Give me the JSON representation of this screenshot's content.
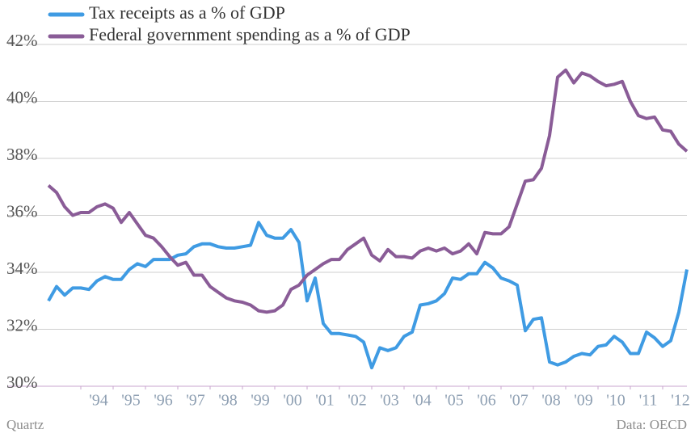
{
  "chart_data": {
    "type": "line",
    "source": "Quartz",
    "note": "Data: OECD",
    "legend": "top-left",
    "grid": true,
    "x": [
      1993,
      1993.25,
      1993.5,
      1993.75,
      1994,
      1994.25,
      1994.5,
      1994.75,
      1995,
      1995.25,
      1995.5,
      1995.75,
      1996,
      1996.25,
      1996.5,
      1996.75,
      1997,
      1997.25,
      1997.5,
      1997.75,
      1998,
      1998.25,
      1998.5,
      1998.75,
      1999,
      1999.25,
      1999.5,
      1999.75,
      2000,
      2000.25,
      2000.5,
      2000.75,
      2001,
      2001.25,
      2001.5,
      2001.75,
      2002,
      2002.25,
      2002.5,
      2002.75,
      2003,
      2003.25,
      2003.5,
      2003.75,
      2004,
      2004.25,
      2004.5,
      2004.75,
      2005,
      2005.25,
      2005.5,
      2005.75,
      2006,
      2006.25,
      2006.5,
      2006.75,
      2007,
      2007.25,
      2007.5,
      2007.75,
      2008,
      2008.25,
      2008.5,
      2008.75,
      2009,
      2009.25,
      2009.5,
      2009.75,
      2010,
      2010.25,
      2010.5,
      2010.75,
      2011,
      2011.25,
      2011.5,
      2011.75,
      2012,
      2012.25,
      2012.5,
      2012.75
    ],
    "series": [
      {
        "name": "Tax receipts as a % of GDP",
        "color": "#3f9be3",
        "values": [
          33.0,
          33.5,
          33.2,
          33.45,
          33.45,
          33.4,
          33.7,
          33.85,
          33.75,
          33.75,
          34.1,
          34.3,
          34.2,
          34.45,
          34.45,
          34.45,
          34.6,
          34.65,
          34.9,
          35.0,
          35.0,
          34.9,
          34.85,
          34.85,
          34.9,
          34.95,
          35.75,
          35.3,
          35.2,
          35.2,
          35.5,
          35.05,
          33.0,
          33.8,
          32.2,
          31.85,
          31.85,
          31.8,
          31.75,
          31.55,
          30.65,
          31.35,
          31.25,
          31.35,
          31.75,
          31.9,
          32.85,
          32.9,
          33.0,
          33.25,
          33.8,
          33.75,
          33.95,
          33.95,
          34.35,
          34.15,
          33.8,
          33.7,
          33.55,
          31.95,
          32.35,
          32.4,
          30.85,
          30.75,
          30.85,
          31.05,
          31.15,
          31.1,
          31.4,
          31.45,
          31.75,
          31.55,
          31.15,
          31.15,
          31.9,
          31.7,
          31.4,
          31.6,
          32.6,
          34.1
        ]
      },
      {
        "name": "Federal government spending as a % of GDP",
        "color": "#8a5c97",
        "values": [
          37.05,
          36.8,
          36.3,
          36.0,
          36.1,
          36.1,
          36.3,
          36.4,
          36.25,
          35.75,
          36.1,
          35.7,
          35.3,
          35.2,
          34.9,
          34.55,
          34.25,
          34.35,
          33.9,
          33.9,
          33.5,
          33.3,
          33.1,
          33.0,
          32.95,
          32.85,
          32.65,
          32.6,
          32.65,
          32.85,
          33.4,
          33.55,
          33.9,
          34.1,
          34.3,
          34.45,
          34.45,
          34.8,
          35.0,
          35.2,
          34.6,
          34.4,
          34.8,
          34.55,
          34.55,
          34.5,
          34.75,
          34.85,
          34.75,
          34.85,
          34.65,
          34.75,
          35.0,
          34.65,
          35.4,
          35.35,
          35.35,
          35.6,
          36.4,
          37.2,
          37.25,
          37.65,
          38.8,
          40.85,
          41.1,
          40.65,
          41.0,
          40.9,
          40.7,
          40.55,
          40.6,
          40.7,
          40.0,
          39.5,
          39.4,
          39.45,
          39.0,
          38.95,
          38.5,
          38.25
        ]
      }
    ],
    "xlim": [
      1991.75,
      2012.75
    ],
    "xticks": [
      {
        "value": 1994,
        "label": "'94"
      },
      {
        "value": 1995,
        "label": "'95"
      },
      {
        "value": 1996,
        "label": "'96"
      },
      {
        "value": 1997,
        "label": "'97"
      },
      {
        "value": 1998,
        "label": "'98"
      },
      {
        "value": 1999,
        "label": "'99"
      },
      {
        "value": 2000,
        "label": "'00"
      },
      {
        "value": 2001,
        "label": "'01"
      },
      {
        "value": 2002,
        "label": "'02"
      },
      {
        "value": 2003,
        "label": "'03"
      },
      {
        "value": 2004,
        "label": "'04"
      },
      {
        "value": 2005,
        "label": "'05"
      },
      {
        "value": 2006,
        "label": "'06"
      },
      {
        "value": 2007,
        "label": "'07"
      },
      {
        "value": 2008,
        "label": "'08"
      },
      {
        "value": 2009,
        "label": "'09"
      },
      {
        "value": 2010,
        "label": "'10"
      },
      {
        "value": 2011,
        "label": "'11"
      },
      {
        "value": 2012,
        "label": "'12"
      }
    ],
    "ylim": [
      30,
      42
    ],
    "yticks": [
      {
        "value": 30,
        "label": "30%"
      },
      {
        "value": 32,
        "label": "32%"
      },
      {
        "value": 34,
        "label": "34%"
      },
      {
        "value": 36,
        "label": "36%"
      },
      {
        "value": 38,
        "label": "38%"
      },
      {
        "value": 40,
        "label": "40%"
      },
      {
        "value": 42,
        "label": "42%"
      }
    ]
  }
}
